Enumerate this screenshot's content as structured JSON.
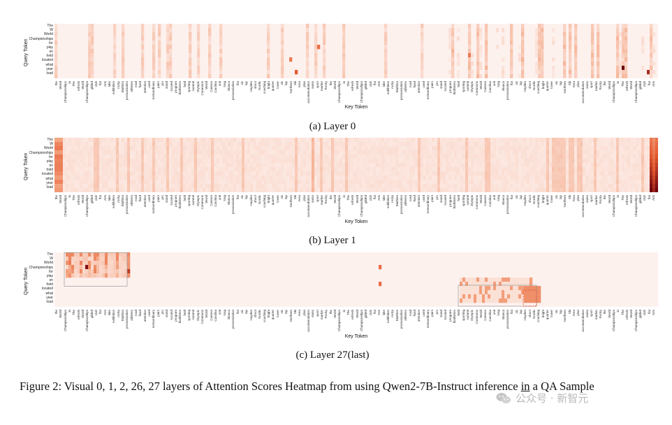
{
  "panels": [
    {
      "id": "layer0",
      "subcaption": "(a) Layer 0",
      "y_axis_label": "Query Token",
      "x_axis_label": "Key Token"
    },
    {
      "id": "layer1",
      "subcaption": "(b) Layer 1",
      "y_axis_label": "Query Token",
      "x_axis_label": "Key Token"
    },
    {
      "id": "layer27",
      "subcaption": "(c) Layer 27(last)",
      "y_axis_label": "Query Token",
      "x_axis_label": "Key Token"
    }
  ],
  "query_tokens": [
    "The",
    "W",
    "World",
    "Championships",
    "for",
    "play",
    "on",
    "held",
    "located",
    "what",
    "year",
    "load"
  ],
  "key_tokens": [
    "the",
    "World",
    "Championships",
    "in",
    "The",
    "refresh",
    "World",
    "Championships",
    "gilded",
    "club",
    "flat",
    "Arts",
    "lake",
    "exhibition",
    "rocky",
    "Biathlon",
    "pronunciation",
    "athletes",
    "road",
    "fixed",
    "attention",
    "used",
    "extraordinary",
    "pairs",
    "pro",
    "stand",
    "located",
    "program",
    "biathletes",
    "held",
    "sporting",
    "summit",
    "Olympic",
    "Commons",
    "World",
    "Cannon",
    "Carolina",
    "unit",
    "long",
    "Bianca",
    "pronunciation",
    "flat",
    "sic",
    "lap",
    "Hayden",
    "shoot",
    "Nordic",
    "coaching",
    "bright",
    "quarter",
    "lower",
    "sic",
    "lap",
    "Northern",
    "Ski",
    "Area",
    "plan",
    "accommodation",
    "swiss",
    "sport",
    "marker",
    "Rocky"
  ],
  "heatmap_colors": {
    "low": "#fdf1ee",
    "mid": "#f4a582",
    "high": "#e4582f",
    "peak": "#67000d"
  },
  "caption": {
    "main": "Figure 2:  Visual 0, 1, 2, 26, 27 layers of Attention Scores Heatmap from using Qwen2-7B-Instruct inference ",
    "underlined": "in",
    "tail": " a QA Sample"
  },
  "watermark": "公众号 · 新智元"
}
